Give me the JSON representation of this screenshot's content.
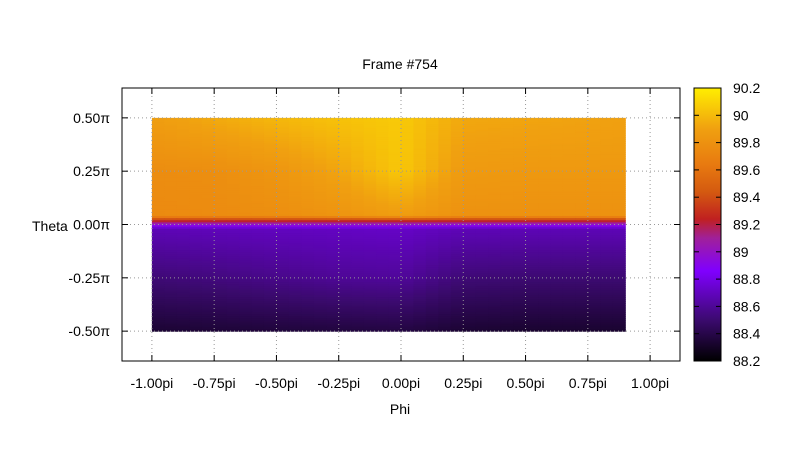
{
  "chart_data": {
    "type": "heatmap",
    "title": "Frame #754",
    "xlabel": "Phi",
    "ylabel": "Theta",
    "xlim": [
      -1.12,
      1.12
    ],
    "ylim": [
      -0.64,
      0.64
    ],
    "x_ticks": [
      -1.0,
      -0.75,
      -0.5,
      -0.25,
      0.0,
      0.25,
      0.5,
      0.75,
      1.0
    ],
    "x_tick_labels": [
      "-1.00pi",
      "-0.75pi",
      "-0.50pi",
      "-0.25pi",
      "0.00pi",
      "0.25pi",
      "0.50pi",
      "0.75pi",
      "1.00pi"
    ],
    "y_ticks": [
      0.5,
      0.25,
      0.0,
      -0.25,
      -0.5
    ],
    "y_tick_labels": [
      "0.50π",
      "0.25π",
      "0.00π",
      "-0.25π",
      "-0.50π"
    ],
    "grid": true,
    "data_extent": {
      "phi": [
        -1.0,
        0.9
      ],
      "theta": [
        -0.5,
        0.5
      ]
    },
    "colorbar": {
      "range": [
        88.2,
        90.2
      ],
      "ticks": [
        90.2,
        90,
        89.8,
        89.6,
        89.4,
        89.2,
        89,
        88.8,
        88.6,
        88.4,
        88.2
      ],
      "tick_labels": [
        "90.2",
        "90",
        "89.8",
        "89.6",
        "89.4",
        "89.2",
        "89",
        "88.8",
        "88.6",
        "88.4",
        "88.2"
      ],
      "palette": "black-purple-red-orange-yellow"
    },
    "value_grid": {
      "phi": [
        -1.0,
        -0.75,
        -0.5,
        -0.25,
        0.0,
        0.25,
        0.5,
        0.75,
        0.9
      ],
      "theta": [
        0.5,
        0.25,
        0.04,
        0.02,
        -0.02,
        -0.25,
        -0.5
      ],
      "values": [
        [
          89.88,
          89.94,
          89.99,
          90.03,
          90.06,
          89.93,
          89.92,
          89.91,
          89.9
        ],
        [
          89.77,
          89.78,
          89.83,
          89.92,
          90.05,
          89.86,
          89.85,
          89.85,
          89.85
        ],
        [
          89.75,
          89.76,
          89.78,
          89.82,
          89.88,
          89.8,
          89.8,
          89.8,
          89.8
        ],
        [
          89.3,
          89.3,
          89.3,
          89.3,
          89.3,
          89.3,
          89.3,
          89.3,
          89.3
        ],
        [
          88.68,
          88.69,
          88.7,
          88.71,
          88.72,
          88.68,
          88.68,
          88.68,
          88.68
        ],
        [
          88.52,
          88.54,
          88.57,
          88.6,
          88.61,
          88.52,
          88.51,
          88.51,
          88.51
        ],
        [
          88.34,
          88.35,
          88.36,
          88.37,
          88.38,
          88.34,
          88.33,
          88.33,
          88.33
        ]
      ]
    }
  }
}
